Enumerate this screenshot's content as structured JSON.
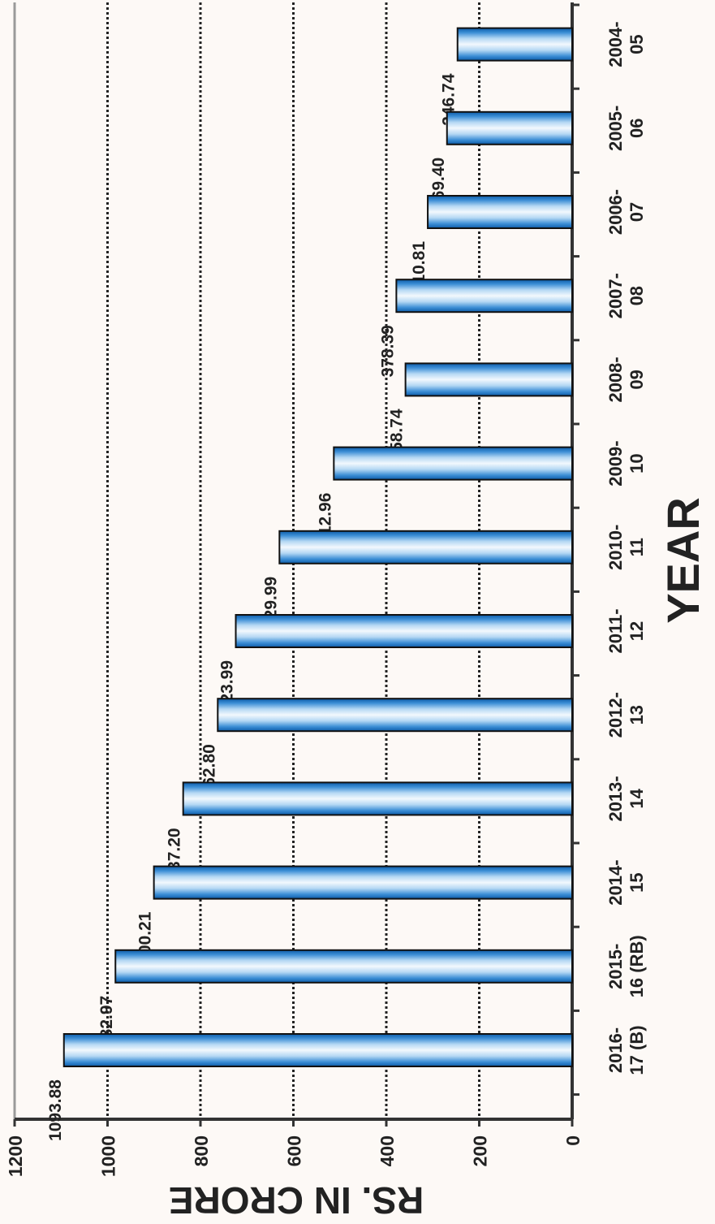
{
  "chart_data": {
    "type": "bar",
    "orientation": "rotated-90-clockwise",
    "xlabel": "YEAR",
    "ylabel": "RS. IN CRORE",
    "ylim": [
      0,
      1200
    ],
    "yticks": [
      "0",
      "200",
      "400",
      "600",
      "800",
      "1000",
      "1200"
    ],
    "grid": true,
    "categories": [
      [
        "2004-",
        "05"
      ],
      [
        "2005-",
        "06"
      ],
      [
        "2006-",
        "07"
      ],
      [
        "2007-",
        "08"
      ],
      [
        "2008-",
        "09"
      ],
      [
        "2009-",
        "10"
      ],
      [
        "2010-",
        "11"
      ],
      [
        "2011-",
        "12"
      ],
      [
        "2012-",
        "13"
      ],
      [
        "2013-",
        "14"
      ],
      [
        "2014-",
        "15"
      ],
      [
        "2015-",
        "16 (RB)"
      ],
      [
        "2016-",
        "17 (B)"
      ]
    ],
    "values": [
      246.74,
      269.4,
      310.81,
      378.39,
      358.74,
      512.96,
      629.99,
      723.99,
      762.8,
      837.2,
      900.21,
      982.97,
      1093.88
    ],
    "value_labels": [
      "246.74",
      "269.40",
      "310.81",
      "378.39",
      "358.74",
      "512.96",
      "629.99",
      "723.99",
      "762.80",
      "837.20",
      "900.21",
      "982.97",
      "1093.88"
    ],
    "colors": {
      "bar_edge": "#1f6fb5",
      "bar_light": "#eef6fd",
      "bar_outline": "#111111",
      "grid": "#222222",
      "axis": "#333333",
      "background": "#fdf9f6"
    }
  }
}
